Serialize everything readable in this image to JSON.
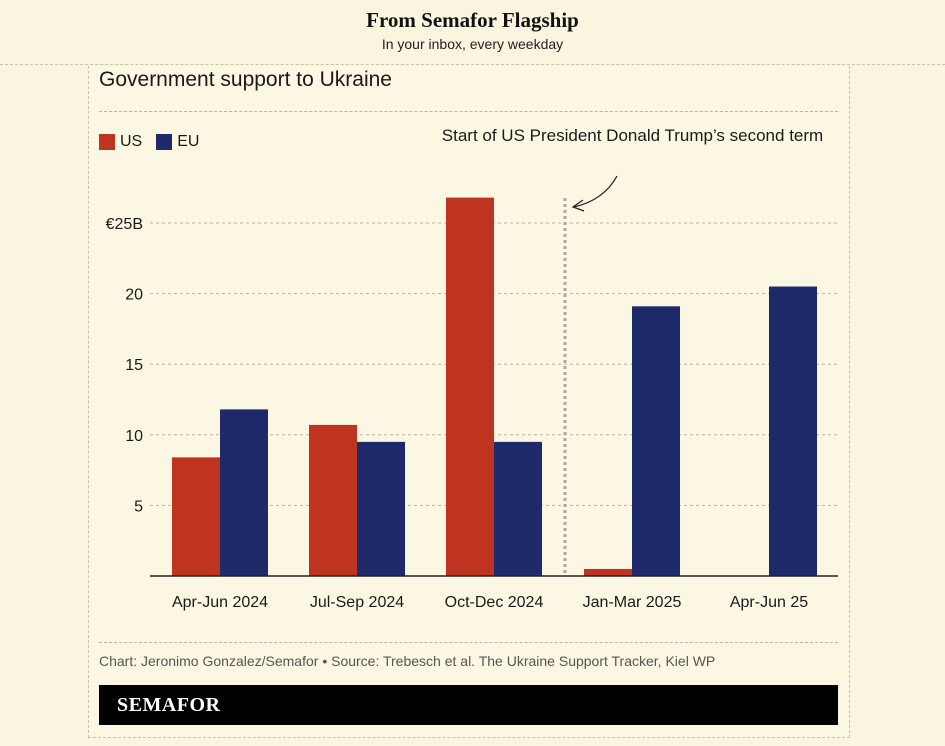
{
  "header": {
    "title": "From Semafor Flagship",
    "subtitle": "In your inbox, every weekday"
  },
  "chart_title": "Government support to Ukraine",
  "annotation": "Start of US President Donald Trump’s second term",
  "source": "Chart: Jeronimo Gonzalez/Semafor • Source: Trebesch et al. The Ukraine Support Tracker, Kiel WP",
  "brand": "SEMAFOR",
  "colors": {
    "us": "#bf3321",
    "eu": "#1f2a6b",
    "background": "#fbf5df"
  },
  "chart_data": {
    "type": "bar",
    "title": "Government support to Ukraine",
    "categories": [
      "Apr-Jun 2024",
      "Jul-Sep 2024",
      "Oct-Dec 2024",
      "Jan-Mar 2025",
      "Apr-Jun 25"
    ],
    "series": [
      {
        "name": "US",
        "color": "#bf3321",
        "values": [
          8.4,
          10.7,
          26.8,
          0.5,
          0
        ]
      },
      {
        "name": "EU",
        "color": "#1f2a6b",
        "values": [
          11.8,
          9.5,
          9.5,
          19.1,
          20.5
        ]
      }
    ],
    "ylim": [
      0,
      25
    ],
    "yticks": [
      5,
      10,
      15,
      20,
      25
    ],
    "ytick_labels": [
      "5",
      "10",
      "15",
      "20",
      "€25B"
    ],
    "xlabel": "",
    "ylabel": "",
    "grid": true,
    "legend": "top-left",
    "marker": {
      "between_categories": [
        2,
        3
      ],
      "style": "dotted vertical line"
    }
  }
}
